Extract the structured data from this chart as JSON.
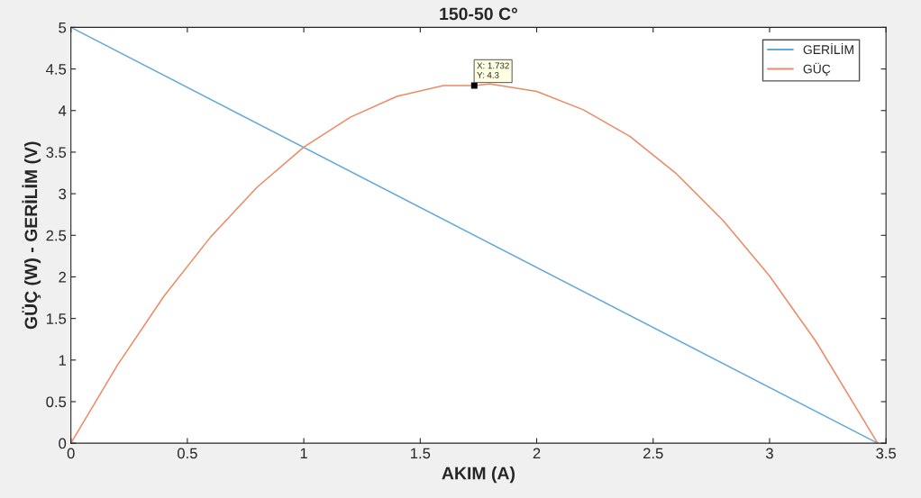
{
  "chart_data": {
    "type": "line",
    "title": "150-50 C°",
    "xlabel": "AKIM (A)",
    "ylabel": "GÜÇ (W) - GERİLİM (V)",
    "series": [
      {
        "name": "GERİLİM",
        "color": "#62a8d9",
        "x": [
          0,
          3.464
        ],
        "values": [
          5,
          0
        ]
      },
      {
        "name": "GÜÇ",
        "color": "#ec8a63",
        "x": [
          0,
          0.2,
          0.4,
          0.6,
          0.8,
          1.0,
          1.2,
          1.4,
          1.6,
          1.732,
          1.8,
          2.0,
          2.2,
          2.4,
          2.6,
          2.8,
          3.0,
          3.2,
          3.464
        ],
        "values": [
          0,
          0.94,
          1.77,
          2.48,
          3.08,
          3.56,
          3.92,
          4.17,
          4.3,
          4.3,
          4.32,
          4.23,
          4.01,
          3.69,
          3.24,
          2.68,
          2.01,
          1.22,
          0
        ]
      }
    ],
    "xlim": [
      0,
      3.5
    ],
    "xticks": [
      0,
      0.5,
      1,
      1.5,
      2,
      2.5,
      3,
      3.5
    ],
    "ylim": [
      0,
      5
    ],
    "yticks": [
      0,
      0.5,
      1,
      1.5,
      2,
      2.5,
      3,
      3.5,
      4,
      4.5,
      5
    ],
    "grid": false,
    "legend": "top right",
    "marker": "none",
    "line_style": "solid",
    "annotations": [
      {
        "text": "X: 1.732\nY: 4.3",
        "x": 1.732,
        "y": 4.3
      }
    ]
  }
}
